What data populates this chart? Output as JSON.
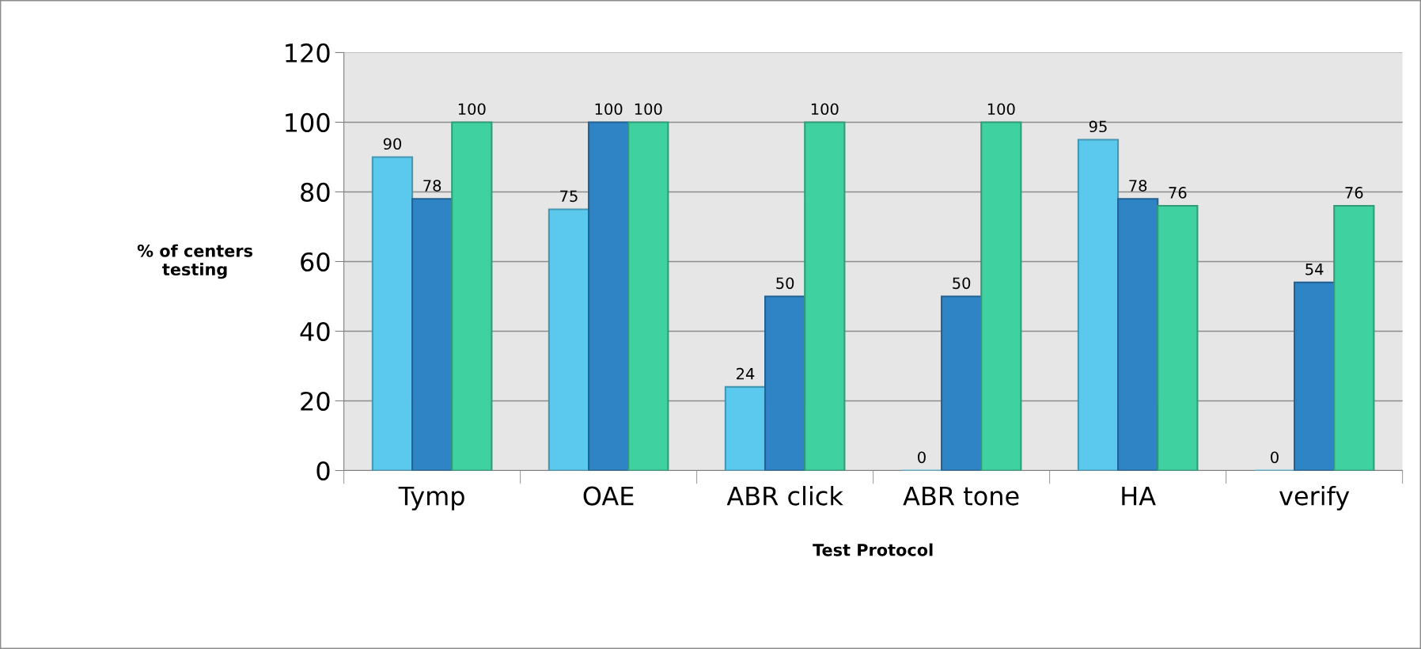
{
  "chart_data": {
    "type": "bar",
    "xlabel": "Test Protocol",
    "ylabel": "% of centers\ntesting",
    "categories": [
      "Tymp",
      "OAE",
      "ABR click",
      "ABR tone",
      "HA",
      "verify"
    ],
    "series": [
      {
        "color": "#5bc9ed",
        "values": [
          90,
          75,
          24,
          0,
          95,
          0
        ]
      },
      {
        "color": "#2e84c5",
        "values": [
          78,
          100,
          50,
          50,
          78,
          54
        ]
      },
      {
        "color": "#40d1a0",
        "values": [
          100,
          100,
          100,
          100,
          76,
          76
        ]
      }
    ],
    "ylim": [
      0,
      120
    ],
    "yticks": [
      0,
      20,
      40,
      60,
      80,
      100,
      120
    ],
    "grid": "y",
    "data_labels": true,
    "legend": false
  }
}
